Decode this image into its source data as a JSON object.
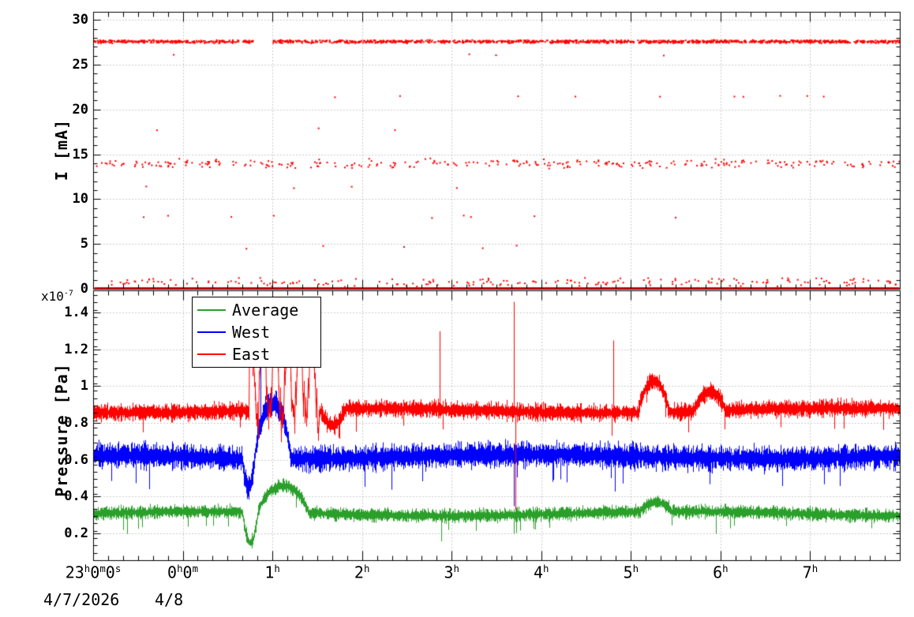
{
  "figure": {
    "background": "#ffffff",
    "frame_color": "#000000",
    "grid_color": "#9a9a9a"
  },
  "x_axis": {
    "range_hours": [
      0,
      9
    ],
    "tick_hours": [
      0,
      1,
      2,
      3,
      4,
      5,
      6,
      7,
      8
    ],
    "tick_labels": [
      "23h0m0s",
      "0h0m",
      "1h",
      "2h",
      "3h",
      "4h",
      "5h",
      "6h",
      "7h"
    ],
    "minor_step_hours": 0.16667,
    "date_left": "4/7/2026",
    "date_right": "4/8"
  },
  "chart_data": [
    {
      "type": "scatter",
      "title": "",
      "ylabel": "I [mA]",
      "ylim": [
        0,
        30.9
      ],
      "yticks": [
        0,
        5,
        10,
        15,
        20,
        25,
        30
      ],
      "yminor_step": 1,
      "marker_color": "#ff0000",
      "marker_size_px": 2,
      "baseline_line": {
        "y": 0,
        "color": "#ff0000",
        "width": 3
      },
      "bands": [
        {
          "y": 27.62,
          "spread": 0.2,
          "count": 1500,
          "gaps": [
            [
              1.78,
              1.99
            ]
          ]
        },
        {
          "y": 14.0,
          "spread": 0.6,
          "count": 310
        },
        {
          "y": 0.75,
          "spread": 0.55,
          "count": 200
        },
        {
          "y": 21.45,
          "spread": 0.18,
          "count": 10
        },
        {
          "y": 8.1,
          "spread": 0.45,
          "count": 9
        },
        {
          "y": 25.9,
          "spread": 0.4,
          "count": 4
        },
        {
          "y": 17.8,
          "spread": 0.3,
          "count": 3
        },
        {
          "y": 11.5,
          "spread": 0.4,
          "count": 4
        },
        {
          "y": 4.8,
          "spread": 0.5,
          "count": 5
        }
      ]
    },
    {
      "type": "line",
      "title": "",
      "ylabel": "Pressure [Pa]",
      "scale_label": "x10^-7",
      "ylim": [
        0.055,
        1.52
      ],
      "yticks": [
        0.2,
        0.4,
        0.6,
        0.8,
        1,
        1.2,
        1.4
      ],
      "yminor_step": 0.04,
      "legend": {
        "labels": [
          "Average",
          "West",
          "East"
        ]
      },
      "series": [
        {
          "name": "Average",
          "color": "#2aa02a",
          "baseline": 0.31,
          "noise": 0.035,
          "events": [
            {
              "type": "dip",
              "t0": 1.66,
              "t1": 1.84,
              "v": 0.15
            },
            {
              "type": "bump",
              "t0": 1.84,
              "t1": 2.4,
              "amp": 0.145
            },
            {
              "type": "bump",
              "t0": 6.1,
              "t1": 6.45,
              "amp": 0.05
            }
          ],
          "spikes": [
            {
              "t": 0.38,
              "v": 0.2
            },
            {
              "t": 3.88,
              "v": 0.16
            },
            {
              "t": 4.69,
              "v": 0.2
            },
            {
              "t": 6.95,
              "v": 0.2
            }
          ]
        },
        {
          "name": "West",
          "color": "#0000ff",
          "baseline": 0.62,
          "noise": 0.065,
          "events": [
            {
              "type": "dip",
              "t0": 1.66,
              "t1": 1.8,
              "v": 0.45
            },
            {
              "type": "bump",
              "t0": 1.8,
              "t1": 2.2,
              "amp": 0.3
            }
          ],
          "spikes": [
            {
              "t": 1.87,
              "v": 1.25
            },
            {
              "t": 4.69,
              "v": 0.35
            },
            {
              "t": 5.82,
              "v": 0.43
            },
            {
              "t": 8.33,
              "v": 0.46
            }
          ]
        },
        {
          "name": "East",
          "color": "#ff0000",
          "baseline": 0.87,
          "noise": 0.045,
          "events": [
            {
              "type": "chaos",
              "t0": 1.74,
              "t1": 2.52,
              "vmin": 0.74,
              "vmax": 1.36
            },
            {
              "type": "dip",
              "t0": 2.52,
              "t1": 2.82,
              "v": 0.79
            },
            {
              "type": "bump",
              "t0": 6.08,
              "t1": 6.42,
              "amp": 0.17
            },
            {
              "type": "bump",
              "t0": 6.7,
              "t1": 7.05,
              "amp": 0.1
            }
          ],
          "spikes": [
            {
              "t": 3.87,
              "v": 1.3
            },
            {
              "t": 4.69,
              "v": 1.46
            },
            {
              "t": 4.71,
              "v": 0.33
            },
            {
              "t": 5.8,
              "v": 1.25
            }
          ]
        }
      ]
    }
  ]
}
